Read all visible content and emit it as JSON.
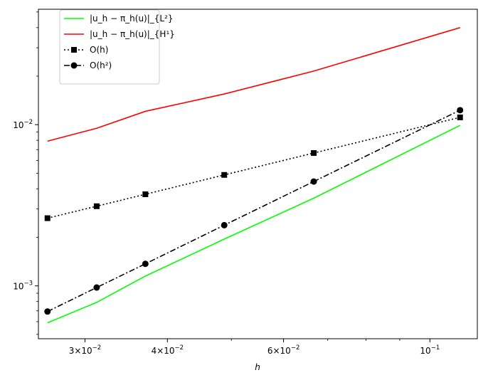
{
  "chart_data": {
    "type": "line",
    "xscale": "log",
    "yscale": "log",
    "xlabel": "h",
    "ylabel": "",
    "title": "",
    "xlim": [
      0.0255,
      0.118
    ],
    "ylim": [
      0.00047,
      0.052
    ],
    "grid": false,
    "legend_position": "top-left",
    "x": [
      0.02632,
      0.03125,
      0.03704,
      0.04878,
      0.06667,
      0.1111
    ],
    "series": [
      {
        "name": "|u_h − π_h(u)|_{L²}",
        "color": "#00ff00",
        "linestyle": "solid",
        "marker": "none",
        "values": [
          0.00059,
          0.00079,
          0.00115,
          0.00195,
          0.0035,
          0.0099
        ]
      },
      {
        "name": "|u_h − π_h(u)|_{H¹}",
        "color": "#ff0000",
        "linestyle": "solid",
        "marker": "none",
        "values": [
          0.0079,
          0.0095,
          0.0121,
          0.0155,
          0.0215,
          0.04
        ]
      },
      {
        "name": "O(h)",
        "color": "#000000",
        "linestyle": "dotted",
        "marker": "square",
        "values": [
          0.00263,
          0.00312,
          0.0037,
          0.00488,
          0.00667,
          0.0111
        ]
      },
      {
        "name": "O(h²)",
        "color": "#000000",
        "linestyle": "dashdot",
        "marker": "circle",
        "values": [
          0.000693,
          0.000977,
          0.00137,
          0.00238,
          0.00444,
          0.0123
        ]
      }
    ],
    "xticks_major": [
      {
        "value": 0.03,
        "base": "3×10",
        "exp": "−2"
      },
      {
        "value": 0.04,
        "base": "4×10",
        "exp": "−2"
      },
      {
        "value": 0.06,
        "base": "6×10",
        "exp": "−2"
      },
      {
        "value": 0.1,
        "base": "10",
        "exp": "−1"
      }
    ],
    "xticks_minor": [
      0.05,
      0.07,
      0.08,
      0.09
    ],
    "yticks_major": [
      {
        "value": 0.001,
        "base": "10",
        "exp": "−3"
      },
      {
        "value": 0.01,
        "base": "10",
        "exp": "−2"
      }
    ],
    "yticks_minor": [
      0.0005,
      0.0006,
      0.0007,
      0.0008,
      0.0009,
      0.002,
      0.003,
      0.004,
      0.005,
      0.006,
      0.007,
      0.008,
      0.009,
      0.02,
      0.03,
      0.04,
      0.05
    ]
  }
}
